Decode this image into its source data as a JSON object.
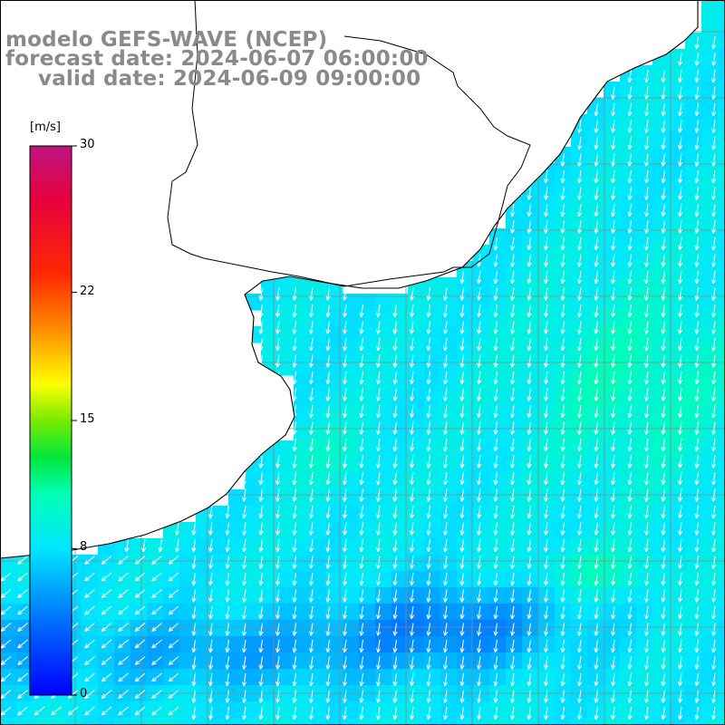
{
  "title": {
    "model": "modelo GEFS-WAVE (NCEP)",
    "forecast": "forecast date: 2024-06-07 06:00:00",
    "valid": "valid date: 2024-06-09 09:00:00"
  },
  "colorbar": {
    "unit": "[m/s]",
    "range": [
      0,
      30
    ],
    "ticks": [
      {
        "value": 30,
        "label": "30"
      },
      {
        "value": 22,
        "label": "22"
      },
      {
        "value": 15,
        "label": "15"
      },
      {
        "value": 8,
        "label": "8"
      },
      {
        "value": 0,
        "label": "0"
      }
    ],
    "colors": [
      "#0000ff",
      "#00a0ff",
      "#00ffff",
      "#00e000",
      "#ffff00",
      "#ff8000",
      "#ff0000",
      "#c01080"
    ]
  },
  "map": {
    "field": "wind speed",
    "prevailing_direction": "south-southwest",
    "land_color": "#ffffff",
    "coast_color": "#000000",
    "grid_color": "#999999"
  }
}
